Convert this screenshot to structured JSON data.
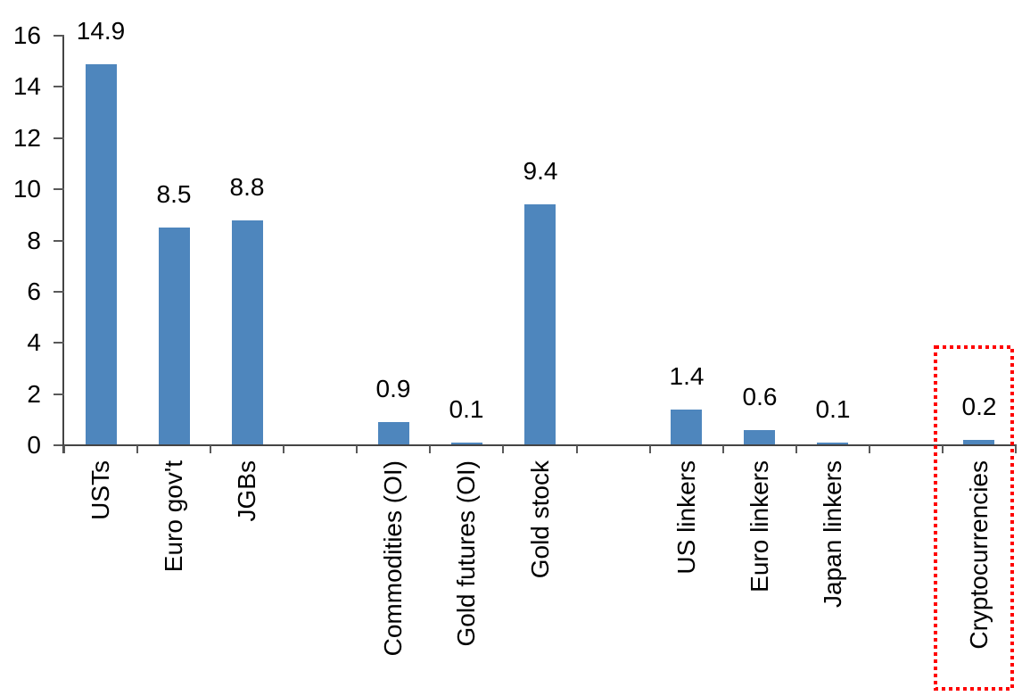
{
  "chart_data": {
    "type": "bar",
    "title": "",
    "xlabel": "",
    "ylabel": "",
    "ylim": [
      0,
      16
    ],
    "yticks": [
      0,
      2,
      4,
      6,
      8,
      10,
      12,
      14,
      16
    ],
    "num_slots": 13,
    "grid": false,
    "legend": false,
    "bar_color": "#4E86BD",
    "axis_color": "#444444",
    "tick_color": "#595959",
    "text_color": "#000000",
    "highlight_box_color": "#FF0000",
    "highlighted_category": "Cryptocurrencies",
    "bars": [
      {
        "label": "USTs",
        "value": 14.9,
        "display": "14.9",
        "slot": 0,
        "highlighted": false
      },
      {
        "label": "Euro gov't",
        "value": 8.5,
        "display": "8.5",
        "slot": 1,
        "highlighted": false
      },
      {
        "label": "JGBs",
        "value": 8.8,
        "display": "8.8",
        "slot": 2,
        "highlighted": false
      },
      {
        "label": "Commodities (OI)",
        "value": 0.9,
        "display": "0.9",
        "slot": 4,
        "highlighted": false
      },
      {
        "label": "Gold futures (OI)",
        "value": 0.1,
        "display": "0.1",
        "slot": 5,
        "highlighted": false
      },
      {
        "label": "Gold stock",
        "value": 9.4,
        "display": "9.4",
        "slot": 6,
        "highlighted": false
      },
      {
        "label": "US linkers",
        "value": 1.4,
        "display": "1.4",
        "slot": 8,
        "highlighted": false
      },
      {
        "label": "Euro linkers",
        "value": 0.6,
        "display": "0.6",
        "slot": 9,
        "highlighted": false
      },
      {
        "label": "Japan linkers",
        "value": 0.1,
        "display": "0.1",
        "slot": 10,
        "highlighted": false
      },
      {
        "label": "Cryptocurrencies",
        "value": 0.2,
        "display": "0.2",
        "slot": 12,
        "highlighted": true
      }
    ]
  }
}
